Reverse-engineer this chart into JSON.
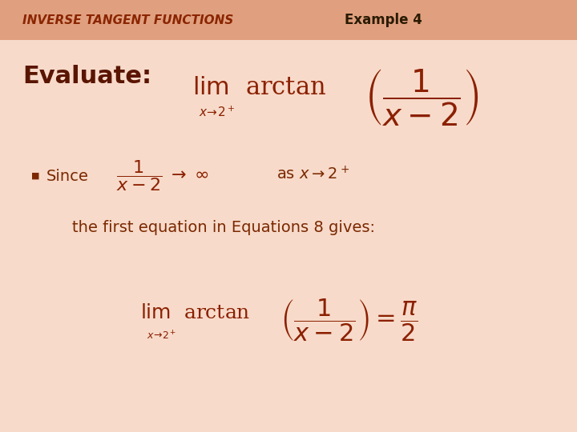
{
  "bg_color": "#f7daca",
  "header_bg": "#e0a080",
  "header_text": "INVERSE TANGENT FUNCTIONS",
  "header_text_color": "#8B2500",
  "example_text": "Example 4",
  "example_text_color": "#2a1a00",
  "evaluate_text": "Evaluate:",
  "evaluate_color": "#5a1500",
  "formula_color": "#8B2000",
  "since_color": "#7B2800",
  "title_fontsize": 11,
  "example_fontsize": 12,
  "evaluate_fontsize": 22,
  "body_fontsize": 14
}
